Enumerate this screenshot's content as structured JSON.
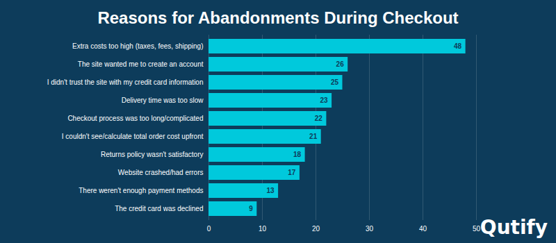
{
  "chart_data": {
    "type": "bar",
    "title": "Reasons for Abandonments During Checkout",
    "orientation": "horizontal",
    "categories": [
      "Extra costs too high (taxes, fees, shipping)",
      "The site wanted me to create an account",
      "I didn't trust the site with my credit card information",
      "Delivery time was too slow",
      "Checkout process was too long/complicated",
      "I couldn't see/calculate total order cost upfront",
      "Returns policy wasn't satisfactory",
      "Website crashed/had errors",
      "There weren't enough payment methods",
      "The credit card was declined"
    ],
    "values": [
      48,
      26,
      25,
      23,
      22,
      21,
      18,
      17,
      13,
      9
    ],
    "color": "#00c9dc",
    "xlim": [
      0,
      50
    ],
    "xticks": [
      0,
      10,
      20,
      30,
      40,
      50
    ],
    "grid": true,
    "data_labels": true,
    "annotations": [
      "Qutify"
    ]
  }
}
